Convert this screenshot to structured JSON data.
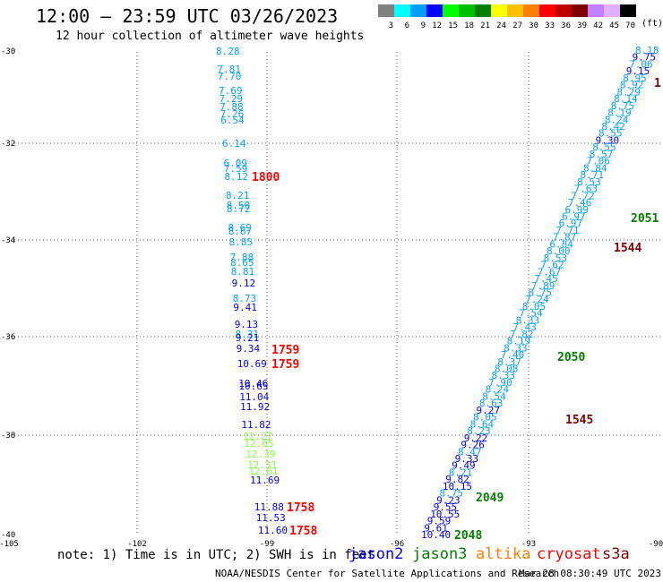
{
  "header": {
    "title": "12:00 — 23:59 UTC 03/26/2023",
    "subtitle": "12 hour collection of altimeter wave heights"
  },
  "colorbar": {
    "unit": "(ft)",
    "bins": [
      {
        "label": "3",
        "color": "#808080"
      },
      {
        "label": "6",
        "color": "#00ffff"
      },
      {
        "label": "9",
        "color": "#00a0ff"
      },
      {
        "label": "12",
        "color": "#0000ff"
      },
      {
        "label": "15",
        "color": "#00ff00"
      },
      {
        "label": "18",
        "color": "#00c000"
      },
      {
        "label": "21",
        "color": "#008000"
      },
      {
        "label": "24",
        "color": "#ffff00"
      },
      {
        "label": "27",
        "color": "#ffc000"
      },
      {
        "label": "30",
        "color": "#ff8000"
      },
      {
        "label": "33",
        "color": "#ff0000"
      },
      {
        "label": "36",
        "color": "#c00000"
      },
      {
        "label": "39",
        "color": "#800000"
      },
      {
        "label": "42",
        "color": "#c080ff"
      },
      {
        "label": "45",
        "color": "#e0b0ff"
      },
      {
        "label": "70",
        "color": "#000000"
      }
    ]
  },
  "map": {
    "lon_ticks": [
      "-105",
      "-102",
      "-99",
      "-96",
      "-93",
      "-90"
    ],
    "lat_ticks": [
      "-30",
      "-32",
      "-34",
      "-36",
      "-38",
      "-40"
    ],
    "lon_range": [
      -105,
      -90
    ],
    "lat_range": [
      -40,
      -30
    ],
    "grid": "dotted"
  },
  "tracks": {
    "west": {
      "points": [
        {
          "v": "8.28",
          "c": "#00a0ff"
        },
        {
          "v": "7.81",
          "c": "#00a0ff"
        },
        {
          "v": "7.70",
          "c": "#00a0ff"
        },
        {
          "v": "7.69",
          "c": "#00a0ff"
        },
        {
          "v": "7.29",
          "c": "#00a0ff"
        },
        {
          "v": "7.88",
          "c": "#00a0ff"
        },
        {
          "v": "7.26",
          "c": "#00a0ff"
        },
        {
          "v": "6.54",
          "c": "#00a0ff"
        },
        {
          "v": "6.14",
          "c": "#00a0ff"
        },
        {
          "v": "6.09",
          "c": "#00a0ff"
        },
        {
          "v": "7.59",
          "c": "#00a0ff"
        },
        {
          "v": "8.12",
          "c": "#00a0ff"
        },
        {
          "v": "8.21",
          "c": "#00a0ff"
        },
        {
          "v": "8.50",
          "c": "#00a0ff"
        },
        {
          "v": "8.72",
          "c": "#00a0ff"
        },
        {
          "v": "8.69",
          "c": "#00a0ff"
        },
        {
          "v": "8.67",
          "c": "#00a0ff"
        },
        {
          "v": "8.85",
          "c": "#00a0ff"
        },
        {
          "v": "7.88",
          "c": "#00a0ff"
        },
        {
          "v": "8.65",
          "c": "#00a0ff"
        },
        {
          "v": "8.81",
          "c": "#00a0ff"
        },
        {
          "v": "9.12",
          "c": "#0000ff"
        },
        {
          "v": "8.73",
          "c": "#00a0ff"
        },
        {
          "v": "9.41",
          "c": "#0000ff"
        },
        {
          "v": "9.13",
          "c": "#0000ff"
        },
        {
          "v": "8.31",
          "c": "#00a0ff"
        },
        {
          "v": "9.21",
          "c": "#0000ff"
        },
        {
          "v": "9.34",
          "c": "#0000ff"
        },
        {
          "v": "10.69",
          "c": "#0000ff"
        },
        {
          "v": "10.46",
          "c": "#0000ff"
        },
        {
          "v": "10.65",
          "c": "#0000ff"
        },
        {
          "v": "11.04",
          "c": "#0000ff"
        },
        {
          "v": "11.92",
          "c": "#0000ff"
        },
        {
          "v": "11.82",
          "c": "#0000ff"
        },
        {
          "v": "12.27",
          "c": "#80ff40"
        },
        {
          "v": "12.05",
          "c": "#80ff40"
        },
        {
          "v": "12.39",
          "c": "#80ff40"
        },
        {
          "v": "12.31",
          "c": "#80ff40"
        },
        {
          "v": "12.61",
          "c": "#80ff40"
        },
        {
          "v": "11.69",
          "c": "#0000ff"
        },
        {
          "v": "11.88",
          "c": "#0000ff"
        },
        {
          "v": "11.53",
          "c": "#0000ff"
        },
        {
          "v": "11.60",
          "c": "#0000ff"
        }
      ],
      "times": [
        {
          "t": "1800",
          "c": "#ff0000"
        },
        {
          "t": "1759",
          "c": "#ff0000"
        },
        {
          "t": "1759",
          "c": "#ff0000"
        },
        {
          "t": "1758",
          "c": "#ff0000"
        },
        {
          "t": "1758",
          "c": "#ff0000"
        }
      ]
    },
    "east": {
      "points": [
        {
          "v": "8.18",
          "c": "#00a0ff"
        },
        {
          "v": "9.75",
          "c": "#0000ff"
        },
        {
          "v": "7.06",
          "c": "#00a0ff"
        },
        {
          "v": "9.15",
          "c": "#0000ff"
        },
        {
          "v": "8.95",
          "c": "#00a0ff"
        },
        {
          "v": "8.92",
          "c": "#00a0ff"
        },
        {
          "v": "8.29",
          "c": "#00a0ff"
        },
        {
          "v": "8.14",
          "c": "#00a0ff"
        },
        {
          "v": "8.75",
          "c": "#00a0ff"
        },
        {
          "v": "8.19",
          "c": "#00a0ff"
        },
        {
          "v": "8.24",
          "c": "#00a0ff"
        },
        {
          "v": "8.42",
          "c": "#00a0ff"
        },
        {
          "v": "8.55",
          "c": "#00a0ff"
        },
        {
          "v": "9.30",
          "c": "#0000ff"
        },
        {
          "v": "8.55",
          "c": "#00a0ff"
        },
        {
          "v": "8.57",
          "c": "#00a0ff"
        },
        {
          "v": "7.06",
          "c": "#00a0ff"
        },
        {
          "v": "8.84",
          "c": "#00a0ff"
        },
        {
          "v": "8.71",
          "c": "#00a0ff"
        },
        {
          "v": "8.53",
          "c": "#00a0ff"
        },
        {
          "v": "7.63",
          "c": "#00a0ff"
        },
        {
          "v": "7.72",
          "c": "#00a0ff"
        },
        {
          "v": "7.46",
          "c": "#00a0ff"
        },
        {
          "v": "6.99",
          "c": "#00a0ff"
        },
        {
          "v": "6.97",
          "c": "#00a0ff"
        },
        {
          "v": "6.97",
          "c": "#00a0ff"
        },
        {
          "v": "7.71",
          "c": "#00a0ff"
        },
        {
          "v": "7.87",
          "c": "#00a0ff"
        },
        {
          "v": "6.84",
          "c": "#00a0ff"
        },
        {
          "v": "8.00",
          "c": "#00a0ff"
        },
        {
          "v": "8.53",
          "c": "#00a0ff"
        },
        {
          "v": "7.62",
          "c": "#00a0ff"
        },
        {
          "v": "7.67",
          "c": "#00a0ff"
        },
        {
          "v": "7.45",
          "c": "#00a0ff"
        },
        {
          "v": "7.89",
          "c": "#00a0ff"
        },
        {
          "v": "8.75",
          "c": "#00a0ff"
        },
        {
          "v": "7.24",
          "c": "#00a0ff"
        },
        {
          "v": "8.05",
          "c": "#00a0ff"
        },
        {
          "v": "7.54",
          "c": "#00a0ff"
        },
        {
          "v": "8.33",
          "c": "#00a0ff"
        },
        {
          "v": "7.43",
          "c": "#00a0ff"
        },
        {
          "v": "7.82",
          "c": "#00a0ff"
        },
        {
          "v": "8.19",
          "c": "#00a0ff"
        },
        {
          "v": "8.33",
          "c": "#00a0ff"
        },
        {
          "v": "7.40",
          "c": "#00a0ff"
        },
        {
          "v": "8.37",
          "c": "#00a0ff"
        },
        {
          "v": "8.08",
          "c": "#00a0ff"
        },
        {
          "v": "8.33",
          "c": "#00a0ff"
        },
        {
          "v": "7.90",
          "c": "#00a0ff"
        },
        {
          "v": "8.24",
          "c": "#00a0ff"
        },
        {
          "v": "8.54",
          "c": "#00a0ff"
        },
        {
          "v": "8.63",
          "c": "#00a0ff"
        },
        {
          "v": "9.27",
          "c": "#0000ff"
        },
        {
          "v": "8.05",
          "c": "#00a0ff"
        },
        {
          "v": "8.64",
          "c": "#00a0ff"
        },
        {
          "v": "8.23",
          "c": "#00a0ff"
        },
        {
          "v": "9.22",
          "c": "#0000ff"
        },
        {
          "v": "9.26",
          "c": "#0000ff"
        },
        {
          "v": "8.47",
          "c": "#00a0ff"
        },
        {
          "v": "9.33",
          "c": "#0000ff"
        },
        {
          "v": "9.49",
          "c": "#0000ff"
        },
        {
          "v": "8.21",
          "c": "#00a0ff"
        },
        {
          "v": "9.82",
          "c": "#0000ff"
        },
        {
          "v": "10.15",
          "c": "#0000ff"
        },
        {
          "v": "8.75",
          "c": "#00a0ff"
        },
        {
          "v": "9.23",
          "c": "#0000ff"
        },
        {
          "v": "9.55",
          "c": "#0000ff"
        },
        {
          "v": "10.55",
          "c": "#0000ff"
        },
        {
          "v": "9.59",
          "c": "#0000ff"
        },
        {
          "v": "9.61",
          "c": "#0000ff"
        },
        {
          "v": "10.40",
          "c": "#0000ff"
        }
      ],
      "times": [
        {
          "t": "2051",
          "c": "#008000"
        },
        {
          "t": "2050",
          "c": "#008000"
        },
        {
          "t": "2049",
          "c": "#008000"
        },
        {
          "t": "2048",
          "c": "#008000"
        },
        {
          "t": "1544",
          "c": "#800000"
        },
        {
          "t": "1545",
          "c": "#800000"
        },
        {
          "t": "1",
          "c": "#800000"
        }
      ]
    }
  },
  "footer": {
    "note": "note: 1) Time is in UTC; 2) SWH is in feet",
    "satellites": [
      {
        "name": "jason2",
        "color": "#0000ff"
      },
      {
        "name": "jason3",
        "color": "#008000"
      },
      {
        "name": "altika",
        "color": "#ff8000"
      },
      {
        "name": "cryosat",
        "color": "#ff0000"
      },
      {
        "name": "s3a",
        "color": "#800000"
      }
    ],
    "credit": "NOAA/NESDIS Center for Satellite Applications and Research",
    "timestamp": "Mar 28 08:30:49 UTC 2023"
  }
}
